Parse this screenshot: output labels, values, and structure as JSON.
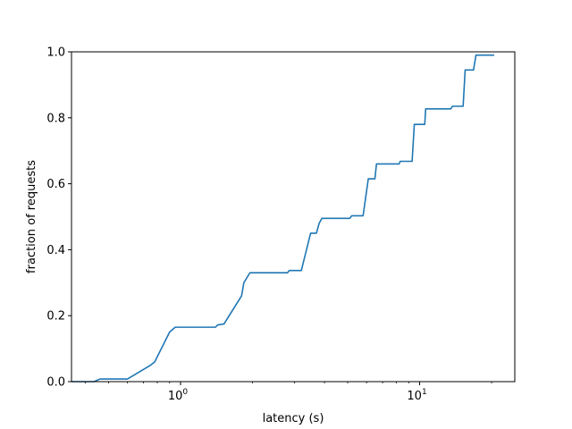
{
  "chart_data": {
    "type": "line",
    "title": "",
    "xlabel": "latency (s)",
    "ylabel": "fraction of requests",
    "xscale": "log",
    "xlim": [
      0.35,
      25
    ],
    "ylim": [
      0.0,
      1.0
    ],
    "grid": false,
    "line_color": "#1f77b4",
    "x_ticks": [
      {
        "value": 1,
        "base": "10",
        "exp": "0"
      },
      {
        "value": 10,
        "base": "10",
        "exp": "1"
      }
    ],
    "y_ticks": [
      {
        "value": 0.0,
        "label": "0.0"
      },
      {
        "value": 0.2,
        "label": "0.2"
      },
      {
        "value": 0.4,
        "label": "0.4"
      },
      {
        "value": 0.6,
        "label": "0.6"
      },
      {
        "value": 0.8,
        "label": "0.8"
      },
      {
        "value": 1.0,
        "label": "1.0"
      }
    ],
    "series": [
      {
        "x": [
          0.35,
          0.435,
          0.46,
          0.6,
          0.75,
          0.78,
          0.9,
          0.95,
          1.0,
          1.4,
          1.43,
          1.52,
          1.8,
          1.84,
          1.95,
          2.0,
          2.8,
          2.85,
          3.2,
          3.5,
          3.7,
          3.8,
          3.9,
          5.1,
          5.2,
          5.8,
          6.1,
          6.5,
          6.6,
          8.2,
          8.3,
          9.3,
          9.5,
          10.5,
          10.6,
          13.5,
          13.7,
          15.2,
          15.5,
          16.8,
          17.2,
          20.5
        ],
        "y": [
          0.0,
          0.0,
          0.008,
          0.008,
          0.05,
          0.06,
          0.15,
          0.165,
          0.165,
          0.165,
          0.172,
          0.175,
          0.26,
          0.3,
          0.33,
          0.33,
          0.33,
          0.337,
          0.337,
          0.45,
          0.45,
          0.48,
          0.495,
          0.495,
          0.503,
          0.503,
          0.615,
          0.615,
          0.66,
          0.66,
          0.668,
          0.668,
          0.78,
          0.78,
          0.827,
          0.827,
          0.835,
          0.835,
          0.945,
          0.945,
          0.99,
          0.99
        ]
      }
    ]
  }
}
